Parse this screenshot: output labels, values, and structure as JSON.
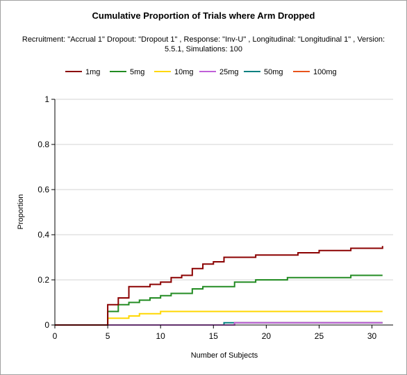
{
  "chart_data": {
    "type": "line",
    "step": true,
    "title": "Cumulative Proportion of Trials where Arm Dropped",
    "subtitle": "Recruitment: \"Accrual 1\" Dropout: \"Dropout 1\" , Response: \"Inv-U\" , Longitudinal: \"Longitudinal 1\" , Version: 5.5.1, Simulations: 100",
    "xlabel": "Number of Subjects",
    "ylabel": "Proportion",
    "xlim": [
      0,
      32
    ],
    "ylim": [
      0,
      1
    ],
    "xticks": [
      0,
      5,
      10,
      15,
      20,
      25,
      30
    ],
    "yticks": [
      0,
      0.2,
      0.4,
      0.6,
      0.8,
      1
    ],
    "xtick_labels": [
      "0",
      "5",
      "10",
      "15",
      "20",
      "25",
      "30"
    ],
    "ytick_labels": [
      "0",
      "0.2",
      "0.4",
      "0.6",
      "0.8",
      "1"
    ],
    "grid": "horizontal",
    "legend_position": "top",
    "series": [
      {
        "name": "1mg",
        "color": "#8b0000",
        "x": [
          0,
          5,
          6,
          7,
          9,
          10,
          11,
          12,
          13,
          14,
          15,
          16,
          17,
          19,
          23,
          25,
          28,
          31
        ],
        "y": [
          0,
          0.09,
          0.12,
          0.17,
          0.18,
          0.19,
          0.21,
          0.22,
          0.25,
          0.27,
          0.28,
          0.3,
          0.3,
          0.31,
          0.32,
          0.33,
          0.34,
          0.35
        ]
      },
      {
        "name": "5mg",
        "color": "#228b22",
        "x": [
          0,
          5,
          6,
          7,
          8,
          9,
          10,
          11,
          13,
          14,
          16,
          17,
          19,
          22,
          28,
          31
        ],
        "y": [
          0,
          0.06,
          0.09,
          0.1,
          0.11,
          0.12,
          0.13,
          0.14,
          0.16,
          0.17,
          0.17,
          0.19,
          0.2,
          0.21,
          0.22,
          0.22
        ]
      },
      {
        "name": "10mg",
        "color": "#ffd700",
        "x": [
          0,
          5,
          6,
          7,
          8,
          10,
          31
        ],
        "y": [
          0,
          0.03,
          0.03,
          0.04,
          0.05,
          0.06,
          0.06
        ]
      },
      {
        "name": "25mg",
        "color": "#c060d8",
        "x": [
          0,
          17,
          31
        ],
        "y": [
          0,
          0.01,
          0.01
        ]
      },
      {
        "name": "50mg",
        "color": "#008080",
        "x": [
          0,
          16,
          31
        ],
        "y": [
          0,
          0.01,
          0.01
        ]
      },
      {
        "name": "100mg",
        "color": "#e8541c",
        "x": [
          0,
          17,
          31
        ],
        "y": [
          0,
          0.01,
          0.01
        ]
      }
    ]
  }
}
